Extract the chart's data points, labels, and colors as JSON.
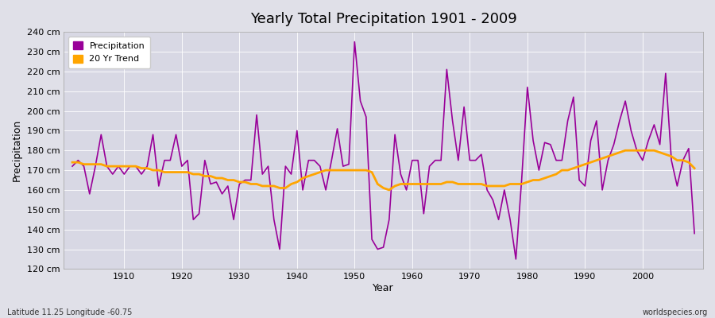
{
  "title": "Yearly Total Precipitation 1901 - 2009",
  "xlabel": "Year",
  "ylabel": "Precipitation",
  "bottom_left_label": "Latitude 11.25 Longitude -60.75",
  "bottom_right_label": "worldspecies.org",
  "precip_color": "#990099",
  "trend_color": "#FFA500",
  "bg_color": "#e0e0e8",
  "plot_bg_color": "#d8d8e4",
  "ylim": [
    120,
    240
  ],
  "ytick_step": 10,
  "years": [
    1901,
    1902,
    1903,
    1904,
    1905,
    1906,
    1907,
    1908,
    1909,
    1910,
    1911,
    1912,
    1913,
    1914,
    1915,
    1916,
    1917,
    1918,
    1919,
    1920,
    1921,
    1922,
    1923,
    1924,
    1925,
    1926,
    1927,
    1928,
    1929,
    1930,
    1931,
    1932,
    1933,
    1934,
    1935,
    1936,
    1937,
    1938,
    1939,
    1940,
    1941,
    1942,
    1943,
    1944,
    1945,
    1946,
    1947,
    1948,
    1949,
    1950,
    1951,
    1952,
    1953,
    1954,
    1955,
    1956,
    1957,
    1958,
    1959,
    1960,
    1961,
    1962,
    1963,
    1964,
    1965,
    1966,
    1967,
    1968,
    1969,
    1970,
    1971,
    1972,
    1973,
    1974,
    1975,
    1976,
    1977,
    1978,
    1979,
    1980,
    1981,
    1982,
    1983,
    1984,
    1985,
    1986,
    1987,
    1988,
    1989,
    1990,
    1991,
    1992,
    1993,
    1994,
    1995,
    1996,
    1997,
    1998,
    1999,
    2000,
    2001,
    2002,
    2003,
    2004,
    2005,
    2006,
    2007,
    2008,
    2009
  ],
  "precipitation": [
    172,
    175,
    172,
    158,
    172,
    188,
    172,
    168,
    172,
    168,
    172,
    172,
    168,
    172,
    188,
    162,
    175,
    175,
    188,
    172,
    175,
    145,
    148,
    175,
    163,
    164,
    158,
    162,
    145,
    163,
    165,
    165,
    198,
    168,
    172,
    145,
    130,
    172,
    168,
    190,
    160,
    175,
    175,
    172,
    160,
    175,
    191,
    172,
    173,
    235,
    205,
    197,
    135,
    130,
    131,
    145,
    188,
    168,
    160,
    175,
    175,
    148,
    172,
    175,
    175,
    221,
    195,
    175,
    202,
    175,
    175,
    178,
    160,
    155,
    145,
    160,
    145,
    125,
    165,
    212,
    185,
    170,
    184,
    183,
    175,
    175,
    195,
    207,
    165,
    162,
    185,
    195,
    160,
    175,
    183,
    195,
    205,
    190,
    180,
    175,
    185,
    193,
    183,
    219,
    175,
    162,
    175,
    181,
    138
  ],
  "trend": [
    174,
    174,
    173,
    173,
    173,
    173,
    172,
    172,
    172,
    172,
    172,
    172,
    171,
    171,
    170,
    170,
    169,
    169,
    169,
    169,
    169,
    168,
    168,
    167,
    167,
    166,
    166,
    165,
    165,
    164,
    164,
    163,
    163,
    162,
    162,
    162,
    161,
    161,
    163,
    164,
    166,
    167,
    168,
    169,
    170,
    170,
    170,
    170,
    170,
    170,
    170,
    170,
    169,
    163,
    161,
    160,
    162,
    163,
    163,
    163,
    163,
    163,
    163,
    163,
    163,
    164,
    164,
    163,
    163,
    163,
    163,
    163,
    162,
    162,
    162,
    162,
    163,
    163,
    163,
    164,
    165,
    165,
    166,
    167,
    168,
    170,
    170,
    171,
    172,
    173,
    174,
    175,
    176,
    177,
    178,
    179,
    180,
    180,
    180,
    180,
    180,
    180,
    179,
    178,
    177,
    175,
    175,
    174,
    171
  ],
  "grid_color": "#ffffff",
  "spine_color": "#aaaaaa",
  "tick_color": "#555555",
  "title_fontsize": 13,
  "axis_label_fontsize": 9,
  "tick_fontsize": 8,
  "legend_fontsize": 8
}
